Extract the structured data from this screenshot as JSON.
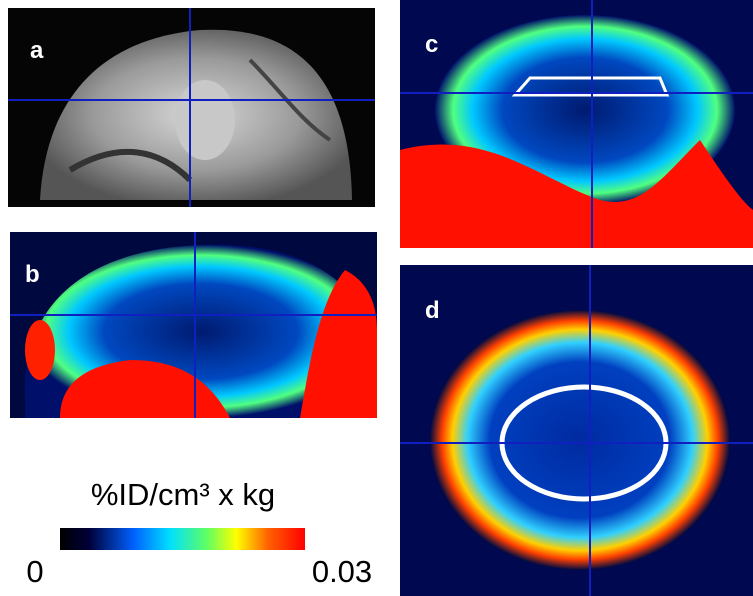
{
  "panels": [
    {
      "label": "a"
    },
    {
      "label": "b"
    },
    {
      "label": "c"
    },
    {
      "label": "d"
    }
  ],
  "colorbar": {
    "title": "%ID/cm³ x kg",
    "min_label": "0",
    "max_label": "0.03"
  }
}
